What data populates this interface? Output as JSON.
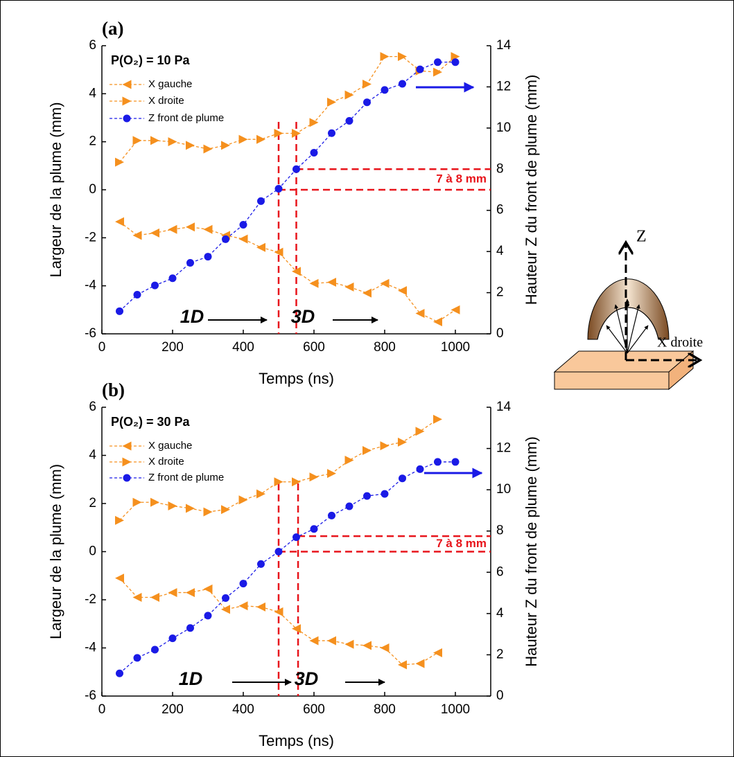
{
  "chart_data": [
    {
      "type": "line",
      "panel_label": "(a)",
      "annotation": "P(O₂) = 10 Pa",
      "xlabel": "Temps (ns)",
      "ylabel": "Largeur de la plume (mm)",
      "y2label": "Hauteur Z du front de plume (mm)",
      "xlim": [
        0,
        1100
      ],
      "xticks": [
        0,
        200,
        400,
        600,
        800,
        1000
      ],
      "ylim": [
        -6,
        6
      ],
      "yticks": [
        -6,
        -4,
        -2,
        0,
        2,
        4,
        6
      ],
      "y2lim": [
        0,
        14
      ],
      "y2ticks": [
        0,
        2,
        4,
        6,
        8,
        10,
        12,
        14
      ],
      "x": [
        50,
        100,
        150,
        200,
        250,
        300,
        350,
        400,
        450,
        500,
        550,
        600,
        650,
        700,
        750,
        800,
        850,
        900,
        950,
        1000
      ],
      "series": [
        {
          "name": "X gauche",
          "color": "#f5901e",
          "marker": "triangle-left",
          "values": [
            -1.33,
            -1.9,
            -1.8,
            -1.65,
            -1.55,
            -1.65,
            -1.9,
            -2.05,
            -2.4,
            -2.6,
            -3.4,
            -3.9,
            -3.85,
            -4.05,
            -4.3,
            -3.9,
            -4.2,
            -5.15,
            -5.5,
            -5.0
          ]
        },
        {
          "name": "X droite",
          "color": "#f5901e",
          "marker": "triangle-right",
          "values": [
            1.15,
            2.05,
            2.05,
            2.0,
            1.85,
            1.7,
            1.85,
            2.1,
            2.1,
            2.35,
            2.35,
            2.8,
            3.65,
            3.95,
            4.4,
            5.55,
            5.55,
            4.95,
            4.9,
            5.55
          ]
        },
        {
          "name": "Z front de plume",
          "color": "#1a1ae6",
          "marker": "circle",
          "axis": "y2",
          "values": [
            1.1,
            1.9,
            2.35,
            2.7,
            3.45,
            3.75,
            4.6,
            5.3,
            6.45,
            7.05,
            8.0,
            8.8,
            9.75,
            10.35,
            11.25,
            11.85,
            12.15,
            12.85,
            13.2,
            13.2
          ]
        }
      ],
      "regions": [
        "1D",
        "3D"
      ],
      "vlines": [
        500,
        550
      ],
      "hlines": [
        7,
        8
      ],
      "hlines_label": "7 à 8 mm",
      "line_color": "#e8141b"
    },
    {
      "type": "line",
      "panel_label": "(b)",
      "annotation": "P(O₂) = 30 Pa",
      "xlabel": "Temps (ns)",
      "ylabel": "Largeur de la plume (mm)",
      "y2label": "Hauteur Z du front de plume (mm)",
      "xlim": [
        0,
        1100
      ],
      "xticks": [
        0,
        200,
        400,
        600,
        800,
        1000
      ],
      "ylim": [
        -6,
        6
      ],
      "yticks": [
        -6,
        -4,
        -2,
        0,
        2,
        4,
        6
      ],
      "y2lim": [
        0,
        14
      ],
      "y2ticks": [
        0,
        2,
        4,
        6,
        8,
        10,
        12,
        14
      ],
      "x": [
        50,
        100,
        150,
        200,
        250,
        300,
        350,
        400,
        450,
        500,
        550,
        600,
        650,
        700,
        750,
        800,
        850,
        900,
        950,
        1000
      ],
      "series": [
        {
          "name": "X gauche",
          "color": "#f5901e",
          "marker": "triangle-left",
          "values": [
            -1.1,
            -1.9,
            -1.9,
            -1.7,
            -1.7,
            -1.55,
            -2.4,
            -2.25,
            -2.3,
            -2.5,
            -3.2,
            -3.7,
            -3.7,
            -3.85,
            -3.9,
            -4.0,
            -4.7,
            -4.65,
            -4.2,
            null
          ]
        },
        {
          "name": "X droite",
          "color": "#f5901e",
          "marker": "triangle-right",
          "values": [
            1.3,
            2.05,
            2.05,
            1.9,
            1.8,
            1.65,
            1.75,
            2.15,
            2.4,
            2.9,
            2.9,
            3.1,
            3.25,
            3.8,
            4.2,
            4.4,
            4.55,
            5.0,
            5.5,
            null
          ]
        },
        {
          "name": "Z front de plume",
          "color": "#1a1ae6",
          "marker": "circle",
          "axis": "y2",
          "values": [
            1.1,
            1.85,
            2.25,
            2.8,
            3.3,
            3.9,
            4.75,
            5.45,
            6.4,
            7.0,
            7.7,
            8.1,
            8.75,
            9.2,
            9.7,
            9.8,
            10.55,
            11.0,
            11.35,
            11.35
          ]
        }
      ],
      "regions": [
        "1D",
        "3D"
      ],
      "vlines": [
        500,
        555
      ],
      "hlines": [
        7,
        7.75
      ],
      "hlines_label": "7 à 8 mm",
      "line_color": "#e8141b"
    }
  ],
  "diagram": {
    "z_label": "Z",
    "x_label": "X droite"
  }
}
